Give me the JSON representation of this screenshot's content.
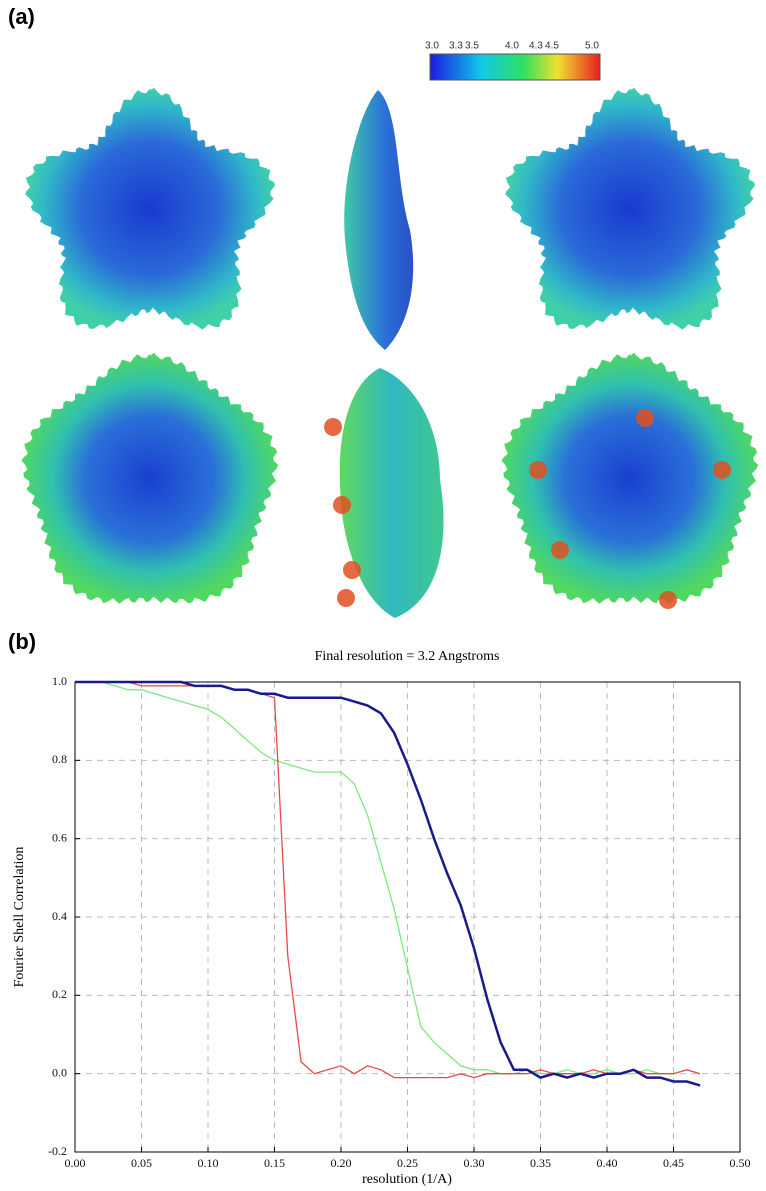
{
  "panel_a": {
    "label": "(a)",
    "colorbar_labels": [
      "3.0",
      "3.3",
      "3.5",
      "4.0",
      "4.3",
      "4.5",
      "5.0"
    ]
  },
  "panel_b": {
    "label": "(b)"
  },
  "chart_data": {
    "type": "line",
    "title": "Final resolution =  3.2 Angstroms",
    "x_label": "resolution (1/A)",
    "y_label": "Fourier Shell Correlation",
    "x": [
      0,
      0.01,
      0.02,
      0.03,
      0.04,
      0.05,
      0.06,
      0.07,
      0.08,
      0.09,
      0.1,
      0.11,
      0.12,
      0.13,
      0.14,
      0.15,
      0.16,
      0.17,
      0.18,
      0.19,
      0.2,
      0.21,
      0.22,
      0.23,
      0.24,
      0.25,
      0.26,
      0.27,
      0.28,
      0.29,
      0.3,
      0.31,
      0.32,
      0.33,
      0.34,
      0.35,
      0.36,
      0.37,
      0.38,
      0.39,
      0.4,
      0.41,
      0.42,
      0.43,
      0.44,
      0.45,
      0.46,
      0.47
    ],
    "series": [
      {
        "color": "#7ee87e",
        "values": [
          1,
          1,
          1,
          0.99,
          0.98,
          0.98,
          0.97,
          0.96,
          0.95,
          0.94,
          0.93,
          0.91,
          0.88,
          0.85,
          0.82,
          0.8,
          0.79,
          0.78,
          0.77,
          0.77,
          0.77,
          0.74,
          0.66,
          0.54,
          0.42,
          0.27,
          0.12,
          0.08,
          0.05,
          0.02,
          0.01,
          0.01,
          0,
          0,
          0.01,
          0,
          0,
          0.01,
          0,
          0,
          0.01,
          0,
          0,
          0.01,
          0,
          0,
          0.01,
          0
        ]
      },
      {
        "color": "#e84a4a",
        "values": [
          1,
          1,
          1,
          1,
          1,
          0.99,
          0.99,
          0.99,
          0.99,
          0.99,
          0.99,
          0.99,
          0.98,
          0.98,
          0.97,
          0.96,
          0.3,
          0.03,
          0,
          0.01,
          0.02,
          0,
          0.02,
          0.01,
          -0.01,
          -0.01,
          -0.01,
          -0.01,
          -0.01,
          0,
          -0.01,
          0,
          0,
          0,
          0,
          0.01,
          0,
          0,
          0,
          0.01,
          0,
          0,
          0.01,
          0,
          0,
          0,
          0.01,
          0
        ]
      },
      {
        "color": "#1a1a8c",
        "values": [
          1,
          1,
          1,
          1,
          1,
          1,
          1,
          1,
          1,
          0.99,
          0.99,
          0.99,
          0.98,
          0.98,
          0.97,
          0.97,
          0.96,
          0.96,
          0.96,
          0.96,
          0.96,
          0.95,
          0.94,
          0.92,
          0.87,
          0.79,
          0.7,
          0.6,
          0.51,
          0.43,
          0.32,
          0.19,
          0.08,
          0.01,
          0.01,
          -0.01,
          0,
          -0.01,
          0,
          -0.01,
          0,
          0,
          0.01,
          -0.01,
          -0.01,
          -0.02,
          -0.02,
          -0.03
        ]
      }
    ],
    "xlim": [
      0,
      0.5
    ],
    "xticks": [
      {
        "value": 0,
        "label": "0.00"
      },
      0.05,
      {
        "value": 0.1,
        "label": "0.10"
      },
      0.15,
      {
        "value": 0.2,
        "label": "0.20"
      },
      0.25,
      {
        "value": 0.3,
        "label": "0.30"
      },
      0.35,
      {
        "value": 0.4,
        "label": "0.40"
      },
      0.45,
      {
        "value": 0.5,
        "label": "0.50"
      }
    ],
    "ylim": [
      -0.2,
      1
    ],
    "yticks": [
      -0.2,
      {
        "value": 0,
        "label": "0.0"
      },
      0.2,
      0.4,
      0.6,
      0.8,
      {
        "value": 1,
        "label": "1.0"
      }
    ],
    "grid": true
  }
}
